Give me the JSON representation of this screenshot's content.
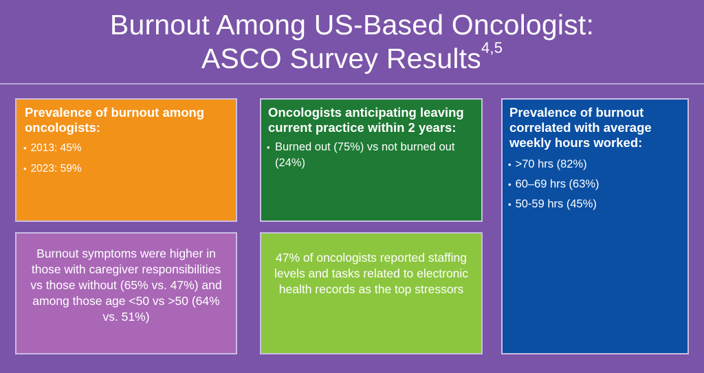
{
  "header": {
    "title_line1": "Burnout Among US-Based Oncologist:",
    "title_line2": "ASCO Survey Results",
    "title_superscript": "4,5"
  },
  "boxes": {
    "prevalence": {
      "heading": "Prevalence of burnout among oncologists:",
      "bullets": [
        "2013: 45%",
        "2023: 59%"
      ],
      "color": "#f39219"
    },
    "leaving": {
      "heading": "Oncologists anticipating leaving current practice within 2 years:",
      "bullets": [
        "Burned out (75%) vs not burned out (24%)"
      ],
      "color": "#1e7a34"
    },
    "hours": {
      "heading": "Prevalence of burnout correlated with average weekly hours worked:",
      "bullets": [
        ">70 hrs (82%)",
        "60–69 hrs (63%)",
        "50-59 hrs (45%)"
      ],
      "color": "#0b4fa3"
    },
    "caregiver": {
      "text": "Burnout symptoms were higher in those with caregiver responsibilities vs those without (65% vs. 47%) and among those age <50 vs >50 (64% vs. 51%)",
      "color": "#a967b6"
    },
    "stressors": {
      "text": "47% of oncologists reported staffing levels and tasks related to electronic health records as the top stressors",
      "color": "#8cc63f"
    }
  },
  "bullet_glyph": "•",
  "colors": {
    "background": "#7a54a8",
    "divider": "#b9a4d6",
    "box_border": "#cbbde3"
  }
}
